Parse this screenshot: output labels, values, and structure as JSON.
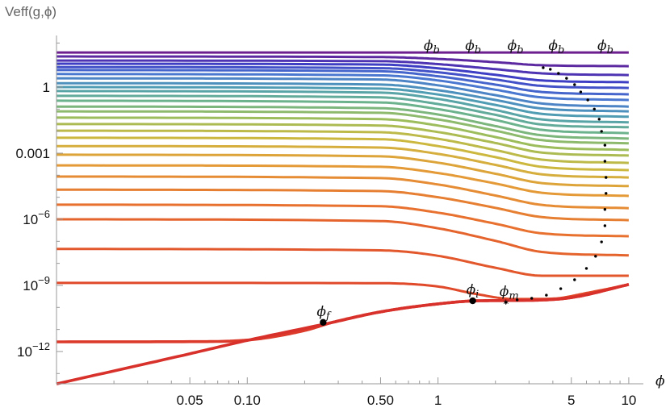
{
  "chart_data": {
    "type": "line",
    "scale": {
      "x": "log",
      "y": "log"
    },
    "xlabel": "ϕ",
    "ylabel": "Veff(g,ϕ)",
    "xlim": [
      0.01,
      10
    ],
    "ylim": [
      3.4e-14,
      200
    ],
    "grid": false,
    "legend": "none",
    "x_ticks": [
      {
        "value": 0.05,
        "label": "0.05"
      },
      {
        "value": 0.1,
        "label": "0.10"
      },
      {
        "value": 0.5,
        "label": "0.50"
      },
      {
        "value": 1,
        "label": "1"
      },
      {
        "value": 5,
        "label": "5"
      },
      {
        "value": 10,
        "label": "10"
      }
    ],
    "y_ticks": [
      {
        "value": 1,
        "label": "1",
        "exp": ""
      },
      {
        "value": 0.001,
        "label": "0.001",
        "exp": ""
      },
      {
        "value": 1e-06,
        "label": "10",
        "exp": "−6"
      },
      {
        "value": 1e-09,
        "label": "10",
        "exp": "−9"
      },
      {
        "value": 1e-12,
        "label": "10",
        "exp": "−12"
      }
    ],
    "color_scale": [
      "#6d1f8f",
      "#3e3ec4",
      "#4a78d0",
      "#4f9cb3",
      "#6cb38d",
      "#9dbd5d",
      "#cdb83f",
      "#e59a38",
      "#e8712f",
      "#e04a2a"
    ],
    "x_common": [
      0.01,
      0.5,
      1,
      2,
      3.5,
      10
    ],
    "series": [
      {
        "x": [
          0.01,
          10
        ],
        "y": [
          37,
          37
        ]
      },
      {
        "y": [
          24.5,
          23,
          19,
          13.5,
          9.8,
          8.9
        ]
      },
      {
        "y": [
          16,
          15,
          11,
          6.5,
          4.2,
          3.5
        ]
      },
      {
        "y": [
          11.5,
          10.5,
          7.1,
          3.6,
          2.0,
          1.66
        ]
      },
      {
        "y": [
          8.1,
          7.2,
          4.7,
          2.2,
          1.13,
          0.91
        ]
      },
      {
        "y": [
          5.9,
          5.2,
          3.1,
          1.29,
          0.6,
          0.47
        ]
      },
      {
        "y": [
          3.9,
          3.4,
          2.0,
          0.76,
          0.34,
          0.26
        ]
      },
      {
        "y": [
          2.5,
          2.2,
          1.2,
          0.43,
          0.18,
          0.13
        ]
      },
      {
        "y": [
          1.5,
          1.3,
          0.72,
          0.26,
          0.107,
          0.079
        ]
      },
      {
        "y": [
          1,
          0.85,
          0.46,
          0.155,
          0.061,
          0.045
        ]
      },
      {
        "y": [
          0.66,
          0.56,
          0.29,
          0.091,
          0.034,
          0.025
        ]
      },
      {
        "y": [
          0.4,
          0.34,
          0.17,
          0.055,
          0.02,
          0.015
        ]
      },
      {
        "y": [
          0.24,
          0.2,
          0.1,
          0.032,
          0.0115,
          0.0081
        ]
      },
      {
        "y": [
          0.13,
          0.11,
          0.057,
          0.017,
          0.0065,
          0.0046
        ]
      },
      {
        "y": [
          0.079,
          0.068,
          0.034,
          0.0105,
          0.0039,
          0.0028
        ]
      },
      {
        "y": [
          0.041,
          0.035,
          0.018,
          0.0054,
          0.002,
          0.0014
        ]
      },
      {
        "y": [
          0.021,
          0.018,
          0.0091,
          0.0029,
          0.00107,
          0.00078
        ]
      },
      {
        "y": [
          0.0105,
          0.0089,
          0.0045,
          0.00138,
          0.00051,
          0.00036
        ]
      },
      {
        "y": [
          0.005,
          0.0043,
          0.0021,
          0.00066,
          0.00024,
          0.00017
        ]
      },
      {
        "y": [
          0.0021,
          0.0018,
          0.00093,
          0.000295,
          0.00011,
          7.9e-05
        ]
      },
      {
        "y": [
          0.00085,
          0.00072,
          0.00037,
          0.000117,
          4.4e-05,
          3.2e-05
        ]
      },
      {
        "y": [
          0.00028,
          0.00024,
          0.000126,
          4.2e-05,
          1.6e-05,
          1.15e-05
        ]
      },
      {
        "y": [
          8.7e-05,
          7.4e-05,
          3.8e-05,
          1.2e-05,
          4.5e-06,
          3.2e-06
        ]
      },
      {
        "y": [
          2.2e-05,
          1.9e-05,
          1e-05,
          3.3e-06,
          1.26e-06,
          9.1e-07
        ]
      },
      {
        "y": [
          4.6e-06,
          3.9e-06,
          2e-06,
          6.3e-07,
          2.3e-07,
          1.7e-07
        ]
      },
      {
        "y": [
          1e-06,
          8.3e-07,
          3.9e-07,
          1.05e-07,
          3.3e-08,
          2.3e-08
        ]
      },
      {
        "y": [
          4.5e-08,
          3.9e-08,
          2.2e-08,
          6.3e-09,
          2.75e-09,
          2.75e-09
        ]
      },
      {
        "x": [
          0.01,
          0.5,
          1,
          1.6,
          2.5,
          4,
          6,
          10
        ],
        "y": [
          1.3e-09,
          1.26e-09,
          8.9e-10,
          4e-10,
          2.4e-10,
          2.5e-10,
          4.5e-10,
          1.1e-09
        ]
      },
      {
        "x": [
          0.01,
          0.05,
          0.1,
          0.2,
          0.28,
          0.5,
          1,
          1.6,
          3,
          5,
          10
        ],
        "y": [
          2.75e-12,
          2.8e-12,
          3.3e-12,
          9e-12,
          2.1e-11,
          6.3e-11,
          1.45e-10,
          2e-10,
          2.1e-10,
          2.8e-10,
          1.1e-09
        ],
        "color": "#dc3a2a"
      },
      {
        "x": [
          0.01,
          0.05,
          0.1,
          0.28,
          0.5,
          1,
          1.6,
          3,
          5,
          10
        ],
        "y": [
          3.4e-14,
          7.9e-13,
          3.2e-12,
          2.1e-11,
          6.3e-11,
          1.45e-10,
          2e-10,
          2.1e-10,
          2.8e-10,
          1.1e-09
        ],
        "color": "#d8302a"
      }
    ],
    "dotted_curve": {
      "x": [
        3.56,
        3.88,
        4.28,
        4.72,
        5.2,
        5.6,
        6.1,
        6.6,
        7.0,
        7.2,
        7.5,
        7.5,
        7.6,
        7.6,
        7.5,
        7.5,
        7.2,
        6.7,
        6.0,
        5.2,
        4.4,
        3.7,
        3.1,
        2.6,
        2.27
      ],
      "y": [
        7.55,
        6.4,
        4.2,
        2.5,
        1.29,
        0.6,
        0.26,
        0.1,
        0.035,
        0.0098,
        0.0023,
        0.00043,
        7.9e-05,
        1.5e-05,
        2.8e-06,
        5.1e-07,
        9.4e-08,
        2.1e-08,
        5.9e-09,
        1.8e-09,
        7.1e-10,
        3.6e-10,
        2.6e-10,
        2.2e-10,
        1.7e-10
      ],
      "color": "#000000"
    },
    "annotations": [
      {
        "symbol": "ϕ",
        "sub": "b",
        "x": 0.91,
        "y": 37,
        "marker": "none"
      },
      {
        "symbol": "ϕ",
        "sub": "b",
        "x": 1.5,
        "y": 37,
        "marker": "none"
      },
      {
        "symbol": "ϕ",
        "sub": "b",
        "x": 2.5,
        "y": 37,
        "marker": "none"
      },
      {
        "symbol": "ϕ",
        "sub": "b",
        "x": 4.1,
        "y": 37,
        "marker": "none"
      },
      {
        "symbol": "ϕ",
        "sub": "b",
        "x": 7.4,
        "y": 37,
        "marker": "none"
      },
      {
        "symbol": "ϕ",
        "sub": "f",
        "x": 0.25,
        "y": 2.1e-11,
        "marker": "dot"
      },
      {
        "symbol": "ϕ",
        "sub": "i",
        "x": 1.52,
        "y": 2e-10,
        "marker": "dot"
      },
      {
        "symbol": "ϕ",
        "sub": "m",
        "x": 2.27,
        "y": 1.7e-10,
        "marker": "star"
      }
    ]
  }
}
